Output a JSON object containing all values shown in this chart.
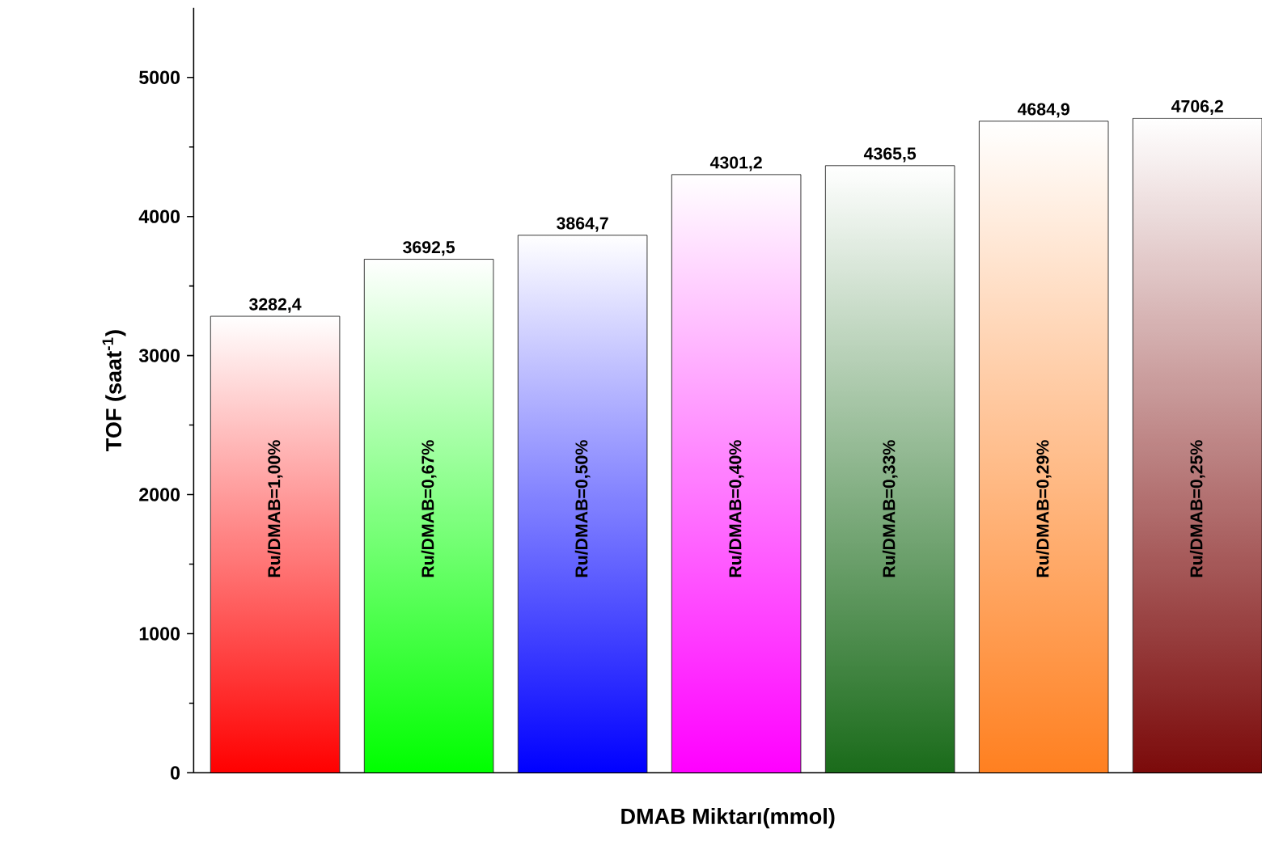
{
  "chart_data": {
    "type": "bar",
    "xlabel": "DMAB Miktarı(mmol)",
    "ylabel": "TOF (saat$^{-1}$)",
    "categories": [
      "Ru/DMAB=1,00%",
      "Ru/DMAB=0,67%",
      "Ru/DMAB=0,50%",
      "Ru/DMAB=0,40%",
      "Ru/DMAB=0,33%",
      "Ru/DMAB=0,29%",
      "Ru/DMAB=0,25%"
    ],
    "values": [
      3282.4,
      3692.5,
      3864.7,
      4301.2,
      4365.5,
      4684.9,
      4706.2
    ],
    "value_labels": [
      "3282,4",
      "3692,5",
      "3864,7",
      "4301,2",
      "4365,5",
      "4684,9",
      "4706,2"
    ],
    "colors": [
      "#ff0000",
      "#00ff00",
      "#0000ff",
      "#ff00ff",
      "#1a6b1a",
      "#ff8020",
      "#7b0a0a"
    ],
    "ylim": [
      0,
      5500
    ],
    "yticks": [
      0,
      1000,
      2000,
      3000,
      4000,
      5000
    ]
  }
}
